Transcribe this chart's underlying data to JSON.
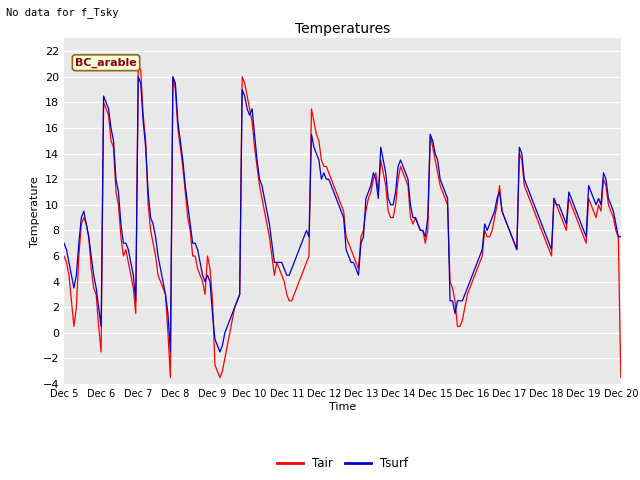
{
  "title": "Temperatures",
  "xlabel": "Time",
  "ylabel": "Temperature",
  "note": "No data for f_Tsky",
  "legend_label": "BC_arable",
  "ylim": [
    -4,
    23
  ],
  "yticks": [
    -4,
    -2,
    0,
    2,
    4,
    6,
    8,
    10,
    12,
    14,
    16,
    18,
    20,
    22
  ],
  "line1_color": "#FF0000",
  "line2_color": "#0000CC",
  "line1_label": "Tair",
  "line2_label": "Tsurf",
  "plot_bg_color": "#E8E8E8",
  "grid_color": "#FFFFFF",
  "x_start": 5,
  "x_end": 20,
  "x_labels": [
    "Dec 5",
    "Dec 6",
    "Dec 7",
    "Dec 8",
    "Dec 9",
    "Dec 10",
    "Dec 11",
    "Dec 12",
    "Dec 13",
    "Dec 14",
    "Dec 15",
    "Dec 16",
    "Dec 17",
    "Dec 18",
    "Dec 19",
    "Dec 20"
  ],
  "x_ticks": [
    5,
    6,
    7,
    8,
    9,
    10,
    11,
    12,
    13,
    14,
    15,
    16,
    17,
    18,
    19,
    20
  ],
  "tair": [
    6.0,
    5.5,
    4.5,
    2.5,
    0.5,
    2.0,
    6.0,
    8.5,
    9.0,
    8.5,
    7.5,
    5.0,
    3.5,
    3.0,
    0.5,
    -1.5,
    18.0,
    17.5,
    17.0,
    15.0,
    14.5,
    11.0,
    10.0,
    7.5,
    6.0,
    6.5,
    5.5,
    4.5,
    3.5,
    1.5,
    21.0,
    20.5,
    17.0,
    15.0,
    10.0,
    8.0,
    7.0,
    6.0,
    4.5,
    4.0,
    3.5,
    3.0,
    0.0,
    -3.5,
    20.0,
    19.0,
    16.0,
    14.5,
    13.0,
    11.0,
    9.0,
    8.0,
    6.0,
    6.0,
    5.0,
    4.5,
    4.0,
    3.0,
    6.0,
    5.0,
    2.5,
    -2.5,
    -3.0,
    -3.5,
    -3.0,
    -2.0,
    -1.0,
    0.0,
    1.0,
    2.0,
    2.5,
    3.0,
    20.0,
    19.5,
    18.5,
    17.5,
    16.5,
    14.5,
    13.0,
    11.5,
    10.5,
    9.5,
    8.5,
    7.5,
    6.0,
    4.5,
    5.5,
    5.0,
    4.5,
    4.0,
    3.0,
    2.5,
    2.5,
    3.0,
    3.5,
    4.0,
    4.5,
    5.0,
    5.5,
    6.0,
    17.5,
    16.5,
    15.5,
    15.0,
    13.5,
    13.0,
    13.0,
    12.5,
    12.0,
    11.5,
    11.0,
    10.5,
    10.0,
    9.5,
    7.5,
    7.0,
    6.5,
    6.0,
    5.5,
    5.0,
    7.5,
    8.0,
    9.5,
    10.5,
    11.0,
    12.0,
    12.5,
    11.0,
    13.5,
    12.5,
    11.5,
    9.5,
    9.0,
    9.0,
    10.0,
    12.0,
    13.0,
    12.5,
    12.0,
    11.5,
    9.0,
    8.5,
    9.0,
    8.5,
    8.0,
    8.0,
    7.0,
    8.0,
    15.5,
    14.5,
    13.5,
    12.5,
    11.5,
    11.0,
    10.5,
    10.0,
    4.0,
    3.5,
    2.5,
    0.5,
    0.5,
    1.0,
    2.0,
    3.0,
    3.5,
    4.0,
    4.5,
    5.0,
    5.5,
    6.0,
    8.0,
    7.5,
    7.5,
    8.0,
    9.0,
    10.0,
    11.5,
    9.5,
    9.0,
    8.5,
    8.0,
    7.5,
    7.0,
    6.5,
    14.0,
    13.5,
    11.5,
    11.0,
    10.5,
    10.0,
    9.5,
    9.0,
    8.5,
    8.0,
    7.5,
    7.0,
    6.5,
    6.0,
    10.5,
    10.0,
    9.5,
    9.0,
    8.5,
    8.0,
    10.5,
    10.0,
    9.5,
    9.0,
    8.5,
    8.0,
    7.5,
    7.0,
    10.5,
    10.0,
    9.5,
    9.0,
    10.0,
    9.5,
    12.0,
    11.5,
    10.0,
    9.5,
    9.0,
    8.0,
    7.5,
    -3.5
  ],
  "tsurf": [
    7.0,
    6.5,
    5.5,
    4.5,
    3.5,
    4.5,
    7.0,
    9.0,
    9.5,
    8.5,
    7.5,
    6.0,
    4.5,
    3.5,
    2.0,
    0.5,
    18.5,
    18.0,
    17.5,
    16.0,
    15.0,
    12.0,
    11.0,
    8.5,
    7.0,
    7.0,
    6.5,
    5.5,
    4.5,
    2.5,
    20.0,
    19.5,
    16.5,
    14.5,
    11.0,
    9.0,
    8.5,
    7.5,
    6.0,
    5.0,
    4.0,
    3.0,
    1.5,
    -1.5,
    20.0,
    19.5,
    16.5,
    15.0,
    13.5,
    11.5,
    10.0,
    8.5,
    7.0,
    7.0,
    6.5,
    5.5,
    4.5,
    4.0,
    4.5,
    4.0,
    1.5,
    -0.5,
    -1.0,
    -1.5,
    -1.0,
    0.0,
    0.5,
    1.0,
    1.5,
    2.0,
    2.5,
    3.0,
    19.0,
    18.5,
    17.5,
    17.0,
    17.5,
    15.5,
    13.5,
    12.0,
    11.5,
    10.5,
    9.5,
    8.5,
    7.0,
    5.5,
    5.5,
    5.5,
    5.5,
    5.0,
    4.5,
    4.5,
    5.0,
    5.5,
    6.0,
    6.5,
    7.0,
    7.5,
    8.0,
    7.5,
    15.5,
    14.5,
    14.0,
    13.5,
    12.0,
    12.5,
    12.0,
    12.0,
    11.5,
    11.0,
    10.5,
    10.0,
    9.5,
    9.0,
    6.5,
    6.0,
    5.5,
    5.5,
    5.0,
    4.5,
    7.0,
    7.5,
    10.5,
    11.0,
    11.5,
    12.5,
    12.0,
    10.5,
    14.5,
    13.5,
    12.5,
    10.5,
    10.0,
    10.0,
    11.0,
    13.0,
    13.5,
    13.0,
    12.5,
    12.0,
    10.0,
    9.0,
    9.0,
    8.5,
    8.0,
    8.0,
    7.5,
    9.0,
    15.5,
    15.0,
    14.0,
    13.5,
    12.0,
    11.5,
    11.0,
    10.5,
    2.5,
    2.5,
    1.5,
    2.5,
    2.5,
    2.5,
    3.0,
    3.5,
    4.0,
    4.5,
    5.0,
    5.5,
    6.0,
    6.5,
    8.5,
    8.0,
    8.5,
    9.0,
    9.5,
    10.5,
    11.0,
    9.5,
    9.0,
    8.5,
    8.0,
    7.5,
    7.0,
    6.5,
    14.5,
    14.0,
    12.0,
    11.5,
    11.0,
    10.5,
    10.0,
    9.5,
    9.0,
    8.5,
    8.0,
    7.5,
    7.0,
    6.5,
    10.5,
    10.0,
    10.0,
    9.5,
    9.0,
    8.5,
    11.0,
    10.5,
    10.0,
    9.5,
    9.0,
    8.5,
    8.0,
    7.5,
    11.5,
    11.0,
    10.5,
    10.0,
    10.5,
    10.0,
    12.5,
    12.0,
    10.5,
    10.0,
    9.5,
    8.5,
    7.5,
    7.5
  ]
}
